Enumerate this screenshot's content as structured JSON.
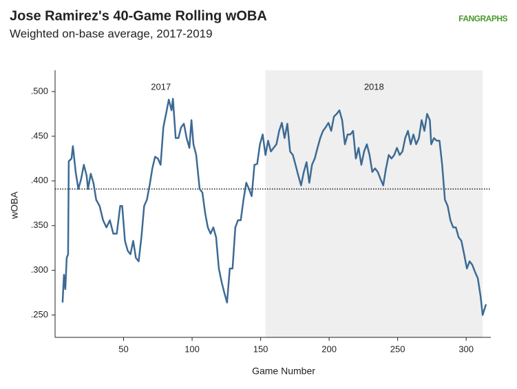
{
  "chart_data": {
    "type": "line",
    "title": "Jose Ramirez's 40-Game Rolling wOBA",
    "subtitle": "Weighted on-base average, 2017-2019",
    "logo": "FANGRAPHS",
    "x_label": "Game Number",
    "y_label": "wOBA",
    "xlim": [
      0,
      318
    ],
    "ylim": [
      0.225,
      0.52
    ],
    "xticks": [
      50,
      100,
      150,
      200,
      250,
      300
    ],
    "yticks": [
      {
        "value": 0.25,
        "label": ".250"
      },
      {
        "value": 0.3,
        "label": ".300"
      },
      {
        "value": 0.35,
        "label": ".350"
      },
      {
        "value": 0.4,
        "label": ".400"
      },
      {
        "value": 0.45,
        "label": ".450"
      },
      {
        "value": 0.5,
        "label": ".500"
      }
    ],
    "grid": false,
    "reference_line": 0.391,
    "spans": [
      {
        "label": "2017",
        "from": 1,
        "to": 153.5,
        "shaded": false
      },
      {
        "label": "2018",
        "from": 153.5,
        "to": 312,
        "shaded": true
      }
    ],
    "series": [
      {
        "name": "wOBA",
        "color": "#3c6a94",
        "x": [
          5.5,
          6.5,
          7.5,
          8.5,
          9.5,
          10,
          12,
          13,
          15,
          17,
          19,
          21,
          23,
          24,
          26,
          28,
          30,
          32.5,
          35,
          37.5,
          40,
          42.5,
          45,
          47.5,
          49,
          51,
          53,
          55,
          57,
          59,
          61,
          63,
          65,
          67,
          69,
          71,
          73,
          75,
          77,
          79,
          81,
          83,
          85,
          86,
          88,
          90,
          92,
          94,
          96,
          98,
          99.5,
          101,
          103,
          105.5,
          107.5,
          109.5,
          111.5,
          113.5,
          115.5,
          117.5,
          119.5,
          121.5,
          123.5,
          125.5,
          127.5,
          129.5,
          131.5,
          133.5,
          135.5,
          137.5,
          139.5,
          141.5,
          143.5,
          145.5,
          147.5,
          149.5,
          151.5,
          153.5,
          155.5,
          157.5,
          159.5,
          161.5,
          163.5,
          165.5,
          167.5,
          169.5,
          171.5,
          173.5,
          175.5,
          177.5,
          179.5,
          181.5,
          183.5,
          185.5,
          187.5,
          189.5,
          191.5,
          193.5,
          195.5,
          197.5,
          199.5,
          201.5,
          203.5,
          205.5,
          207.5,
          209.5,
          211.5,
          213.5,
          215.5,
          217.5,
          219.5,
          221.5,
          223.5,
          225.5,
          227.5,
          229.5,
          231.5,
          233.5,
          235.5,
          237.5,
          239.5,
          241.5,
          243.5,
          245.5,
          247.5,
          249.5,
          251.5,
          253.5,
          255.5,
          257.5,
          259.5,
          261.5,
          263.5,
          265.5,
          267.5,
          269.5,
          271.5,
          273.5,
          274.5,
          276.5,
          278.5,
          280.5,
          282.5,
          284.5,
          286.5,
          288.5,
          290.5,
          292.5,
          294.5,
          296.5,
          298.5,
          300.5,
          302.5,
          304.5,
          306.5,
          308.5,
          310.5,
          312,
          314.5
        ],
        "values": [
          0.264,
          0.295,
          0.279,
          0.314,
          0.318,
          0.422,
          0.425,
          0.439,
          0.41,
          0.391,
          0.402,
          0.418,
          0.406,
          0.391,
          0.408,
          0.398,
          0.379,
          0.372,
          0.356,
          0.348,
          0.356,
          0.341,
          0.341,
          0.372,
          0.372,
          0.333,
          0.322,
          0.318,
          0.333,
          0.314,
          0.31,
          0.337,
          0.372,
          0.379,
          0.395,
          0.414,
          0.427,
          0.425,
          0.418,
          0.46,
          0.475,
          0.491,
          0.479,
          0.492,
          0.448,
          0.448,
          0.46,
          0.464,
          0.448,
          0.437,
          0.468,
          0.441,
          0.429,
          0.391,
          0.387,
          0.364,
          0.348,
          0.341,
          0.348,
          0.337,
          0.302,
          0.287,
          0.275,
          0.264,
          0.302,
          0.302,
          0.348,
          0.356,
          0.356,
          0.379,
          0.398,
          0.391,
          0.383,
          0.418,
          0.419,
          0.441,
          0.452,
          0.429,
          0.445,
          0.433,
          0.437,
          0.441,
          0.456,
          0.465,
          0.448,
          0.464,
          0.433,
          0.429,
          0.418,
          0.406,
          0.395,
          0.41,
          0.421,
          0.398,
          0.418,
          0.425,
          0.437,
          0.448,
          0.456,
          0.46,
          0.465,
          0.456,
          0.472,
          0.475,
          0.479,
          0.468,
          0.441,
          0.452,
          0.452,
          0.456,
          0.425,
          0.437,
          0.418,
          0.433,
          0.441,
          0.429,
          0.41,
          0.414,
          0.41,
          0.402,
          0.395,
          0.414,
          0.429,
          0.425,
          0.429,
          0.437,
          0.429,
          0.433,
          0.448,
          0.456,
          0.441,
          0.452,
          0.441,
          0.448,
          0.468,
          0.456,
          0.475,
          0.468,
          0.441,
          0.448,
          0.445,
          0.445,
          0.418,
          0.379,
          0.372,
          0.356,
          0.348,
          0.348,
          0.337,
          0.333,
          0.318,
          0.302,
          0.31,
          0.306,
          0.298,
          0.291,
          0.271,
          0.25,
          0.262
        ]
      }
    ]
  }
}
